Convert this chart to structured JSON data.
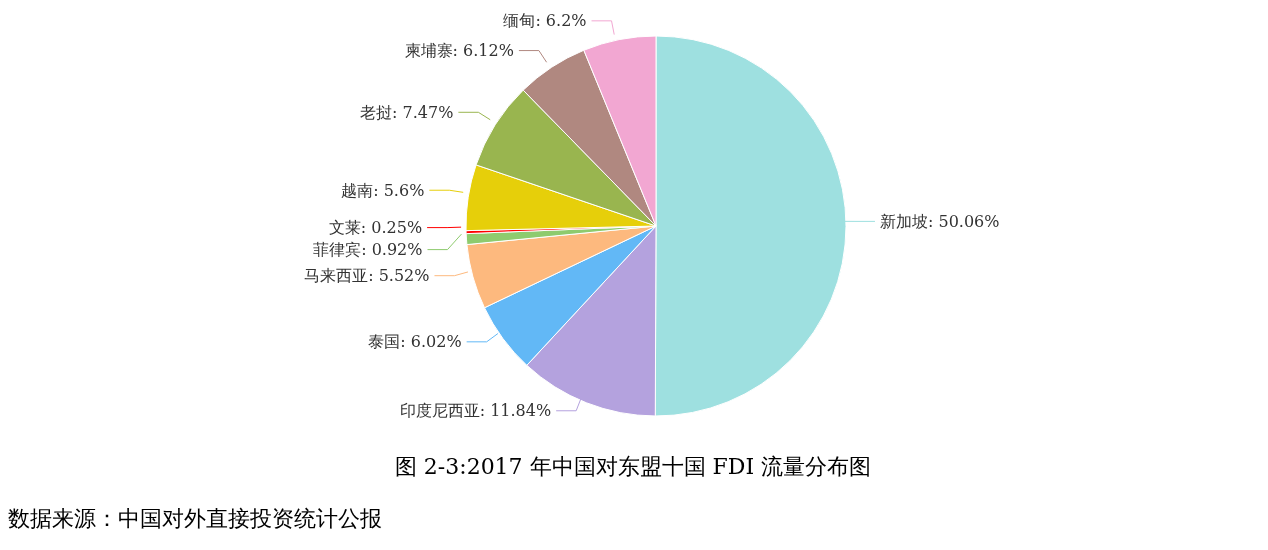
{
  "chart_data": {
    "type": "pie",
    "title": "图 2-3:2017 年中国对东盟十国 FDI 流量分布图",
    "categories": [
      "新加坡",
      "印度尼西亚",
      "泰国",
      "马来西亚",
      "菲律宾",
      "文莱",
      "越南",
      "老挝",
      "柬埔寨",
      "缅甸"
    ],
    "values": [
      50.06,
      11.84,
      6.02,
      5.52,
      0.92,
      0.25,
      5.6,
      7.47,
      6.12,
      6.2
    ],
    "value_labels": [
      "50.06%",
      "11.84%",
      "6.02%",
      "5.52%",
      "0.92%",
      "0.25%",
      "5.6%",
      "7.47%",
      "6.12%",
      "6.2%"
    ],
    "colors": [
      "#9ee0e0",
      "#b4a2de",
      "#62b8f6",
      "#fdb97e",
      "#8ecb6e",
      "#ff0000",
      "#e6cf0a",
      "#99b54f",
      "#b08880",
      "#f2a7d2"
    ],
    "annotations": [
      "数据来源：中国对外直接投资统计公报"
    ]
  }
}
